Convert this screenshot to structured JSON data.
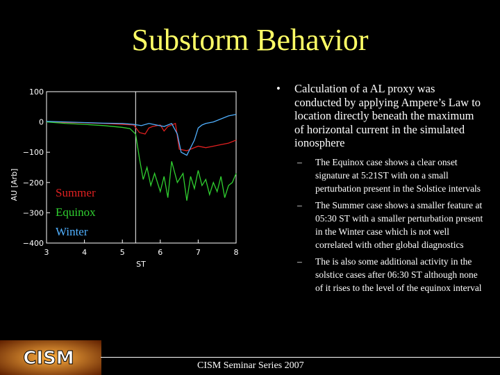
{
  "title": "Substorm Behavior",
  "bullet": {
    "text": "Calculation of a AL proxy was conducted by applying Ampere’s Law to location directly beneath the maximum of horizontal current in the simulated ionosphere",
    "subs": [
      "The Equinox case shows a clear onset signature at 5:21ST with on a small perturbation present in the Solstice intervals",
      "The Summer case shows a smaller feature at 05:30 ST with a smaller perturbation present in the Winter case which is not well correlated with other global diagnostics",
      "The is also some additional activity in the solstice cases after 06:30 ST although none of it rises to the level of the equinox interval"
    ]
  },
  "footer": "CISM Seminar Series 2007",
  "logo_text": "CISM",
  "colors": {
    "title": "#ffff66",
    "summer": "#e02020",
    "equinox": "#30d030",
    "winter": "#50b0ff"
  },
  "chart_data": {
    "type": "line",
    "xlabel": "ST",
    "ylabel": "AU [Arb]",
    "xlim": [
      3,
      8
    ],
    "ylim": [
      -400,
      100
    ],
    "xticks": [
      "3",
      "4",
      "5",
      "6",
      "7",
      "8"
    ],
    "yticks": [
      "100",
      "0",
      "−100",
      "−200",
      "−300",
      "−400"
    ],
    "vline_x": 5.35,
    "legend": [
      "Summer",
      "Equinox",
      "Winter"
    ],
    "series": [
      {
        "name": "Summer",
        "color": "#e02020",
        "x": [
          3.0,
          3.5,
          4.0,
          4.5,
          5.0,
          5.3,
          5.45,
          5.6,
          5.7,
          5.8,
          6.0,
          6.1,
          6.2,
          6.4,
          6.5,
          6.7,
          6.9,
          7.0,
          7.2,
          7.4,
          7.6,
          7.8,
          8.0
        ],
        "y": [
          0,
          -2,
          -3,
          -5,
          -8,
          -10,
          -35,
          -40,
          -20,
          -15,
          -10,
          -30,
          -15,
          -5,
          -90,
          -95,
          -85,
          -80,
          -85,
          -80,
          -75,
          -70,
          -60
        ]
      },
      {
        "name": "Equinox",
        "color": "#30d030",
        "x": [
          3.0,
          3.5,
          4.0,
          4.5,
          5.0,
          5.2,
          5.35,
          5.45,
          5.55,
          5.65,
          5.75,
          5.85,
          6.0,
          6.1,
          6.2,
          6.3,
          6.45,
          6.6,
          6.7,
          6.8,
          6.9,
          7.0,
          7.1,
          7.2,
          7.3,
          7.4,
          7.5,
          7.6,
          7.7,
          7.8,
          7.9,
          8.0
        ],
        "y": [
          0,
          -5,
          -8,
          -12,
          -18,
          -22,
          -40,
          -120,
          -190,
          -150,
          -210,
          -170,
          -230,
          -180,
          -250,
          -130,
          -200,
          -170,
          -260,
          -180,
          -220,
          -160,
          -210,
          -190,
          -240,
          -200,
          -230,
          -180,
          -250,
          -210,
          -200,
          -170
        ]
      },
      {
        "name": "Winter",
        "color": "#50b0ff",
        "x": [
          3.0,
          3.5,
          4.0,
          4.5,
          5.0,
          5.3,
          5.5,
          5.7,
          5.9,
          6.1,
          6.3,
          6.45,
          6.55,
          6.7,
          6.9,
          7.0,
          7.1,
          7.2,
          7.4,
          7.6,
          7.8,
          8.0
        ],
        "y": [
          2,
          0,
          -2,
          -4,
          -5,
          -8,
          -12,
          -5,
          -10,
          -15,
          -5,
          -40,
          -100,
          -110,
          -60,
          -20,
          -10,
          -5,
          0,
          10,
          20,
          25
        ]
      }
    ]
  }
}
